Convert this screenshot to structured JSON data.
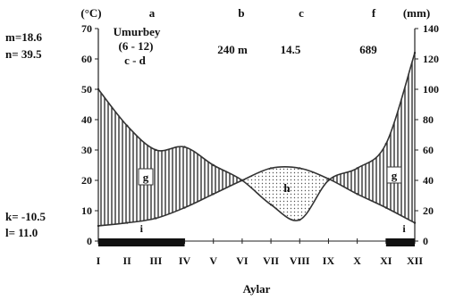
{
  "chart_data": {
    "type": "line",
    "header_letters": {
      "a": "a",
      "b": "b",
      "c": "c",
      "f": "f"
    },
    "units": {
      "left": "(°C)",
      "right": "(mm)"
    },
    "station": {
      "name": "Umurbey",
      "period": "(6 - 12)",
      "formula": "c - d"
    },
    "summary": {
      "altitude": "240 m",
      "mean_temp": "14.5",
      "annual_precip": "689"
    },
    "left_stats": {
      "m": "m=18.6",
      "n": "n= 39.5",
      "k": "k= -10.5",
      "l": "l= 11.0"
    },
    "xlabel": "Aylar",
    "categories": [
      "I",
      "II",
      "III",
      "IV",
      "V",
      "VI",
      "VII",
      "VIII",
      "IX",
      "X",
      "XI",
      "XII"
    ],
    "left_axis": {
      "ylim": [
        0,
        70
      ],
      "ticks": [
        "0",
        "10",
        "20",
        "30",
        "40",
        "50",
        "60",
        "70"
      ]
    },
    "right_axis": {
      "ylim": [
        0,
        140
      ],
      "ticks": [
        "0",
        "20",
        "40",
        "60",
        "80",
        "100",
        "120",
        "140"
      ]
    },
    "series": [
      {
        "values": [
          5,
          6,
          7.5,
          11,
          15.5,
          20,
          24,
          24,
          20.5,
          15.5,
          11,
          6
        ]
      },
      {
        "values": [
          50,
          38,
          30,
          31,
          25,
          20,
          12,
          7,
          20,
          24,
          32,
          62
        ]
      }
    ],
    "region_labels": {
      "g": "g",
      "h": "h"
    },
    "frost_markers": {
      "label": "i",
      "spans": [
        [
          1,
          4
        ],
        [
          11,
          12
        ]
      ]
    }
  }
}
